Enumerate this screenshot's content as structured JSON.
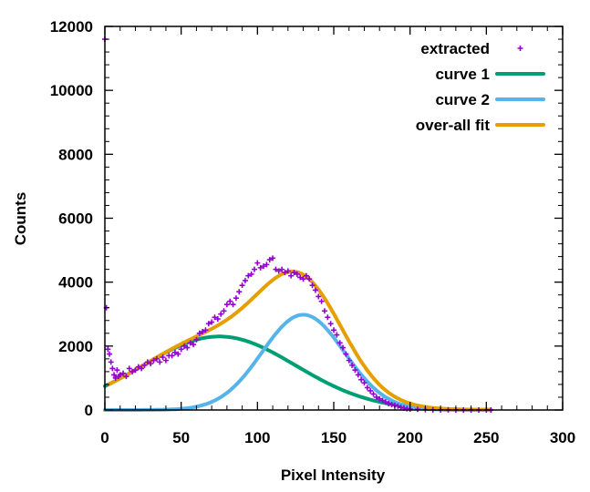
{
  "chart_data": {
    "type": "line",
    "title": "",
    "xlabel": "Pixel Intensity",
    "ylabel": "Counts",
    "xlim": [
      0,
      300
    ],
    "ylim": [
      0,
      12000
    ],
    "xticks": [
      0,
      50,
      100,
      150,
      200,
      250,
      300
    ],
    "yticks": [
      0,
      2000,
      4000,
      6000,
      8000,
      10000,
      12000
    ],
    "grid": false,
    "legend_position": "top-right",
    "series": [
      {
        "name": "extracted",
        "style": "points",
        "color": "#9400d3",
        "x": [
          0,
          1,
          2,
          3,
          4,
          5,
          6,
          7,
          8,
          9,
          10,
          12,
          14,
          16,
          18,
          20,
          22,
          24,
          26,
          28,
          30,
          32,
          34,
          36,
          38,
          40,
          42,
          44,
          46,
          48,
          50,
          52,
          54,
          56,
          58,
          60,
          62,
          64,
          66,
          68,
          70,
          72,
          74,
          76,
          78,
          80,
          82,
          84,
          86,
          88,
          90,
          92,
          94,
          96,
          98,
          100,
          102,
          104,
          106,
          108,
          110,
          112,
          114,
          116,
          118,
          120,
          122,
          124,
          126,
          128,
          130,
          132,
          134,
          136,
          138,
          140,
          142,
          144,
          146,
          148,
          150,
          152,
          154,
          156,
          158,
          160,
          162,
          164,
          166,
          168,
          170,
          172,
          174,
          176,
          178,
          180,
          182,
          184,
          186,
          188,
          190,
          192,
          194,
          196,
          198,
          200,
          205,
          210,
          215,
          220,
          225,
          230,
          235,
          240,
          245,
          250,
          253
        ],
        "y": [
          11600,
          3200,
          1900,
          1750,
          1500,
          1300,
          1100,
          1000,
          1250,
          1050,
          1100,
          1150,
          1050,
          1300,
          1200,
          1250,
          1350,
          1300,
          1400,
          1500,
          1450,
          1550,
          1600,
          1500,
          1650,
          1550,
          1700,
          1700,
          1800,
          1750,
          1900,
          2000,
          1950,
          2100,
          2050,
          2200,
          2400,
          2450,
          2500,
          2700,
          2750,
          2900,
          2850,
          3000,
          3100,
          3300,
          3400,
          3300,
          3500,
          3700,
          3900,
          4050,
          4200,
          4250,
          4400,
          4600,
          4450,
          4500,
          4550,
          4700,
          4750,
          4400,
          4350,
          4400,
          4300,
          4350,
          4200,
          4300,
          4250,
          4150,
          4100,
          4200,
          4100,
          3900,
          3750,
          3550,
          3400,
          3100,
          2900,
          2700,
          2500,
          2350,
          2100,
          1950,
          1750,
          1550,
          1400,
          1250,
          1100,
          950,
          850,
          700,
          600,
          500,
          400,
          350,
          300,
          250,
          200,
          170,
          150,
          120,
          80,
          60,
          40,
          30,
          20,
          10,
          5,
          5,
          2,
          1,
          1,
          0,
          0,
          0,
          0
        ]
      },
      {
        "name": "curve 1",
        "style": "line",
        "color": "#009e73",
        "model": {
          "amplitude": 2300,
          "center": 75,
          "sigma": 50
        },
        "x_range": [
          0,
          253
        ]
      },
      {
        "name": "curve 2",
        "style": "line",
        "color": "#56b4e9",
        "model": {
          "amplitude": 2980,
          "center": 130,
          "sigma": 27
        },
        "x_range": [
          0,
          253
        ]
      },
      {
        "name": "over-all fit",
        "style": "line",
        "color": "#e69f00",
        "model": "sum",
        "x_range": [
          3,
          253
        ]
      }
    ]
  }
}
